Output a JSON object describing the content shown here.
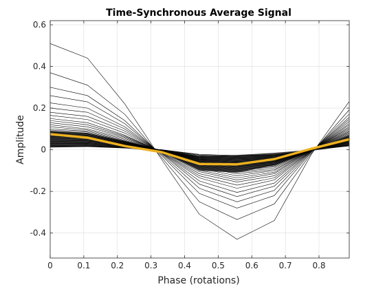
{
  "chart_data": {
    "type": "line",
    "title": "Time-Synchronous Average Signal",
    "xlabel": "Phase (rotations)",
    "ylabel": "Amplitude",
    "xlim": [
      0,
      0.89
    ],
    "ylim": [
      -0.52,
      0.62
    ],
    "xticks": [
      0,
      0.1,
      0.2,
      0.3,
      0.4,
      0.5,
      0.6,
      0.7,
      0.8
    ],
    "xtick_labels": [
      "0",
      "0.1",
      "0.2",
      "0.3",
      "0.4",
      "0.5",
      "0.6",
      "0.7",
      "0.8"
    ],
    "yticks": [
      -0.4,
      -0.2,
      0,
      0.2,
      0.4,
      0.6
    ],
    "ytick_labels": [
      "-0.4",
      "-0.2",
      "0",
      "0.2",
      "0.4",
      "0.6"
    ],
    "grid": true,
    "legend": "none",
    "colors": {
      "individual": "#000000",
      "dense_band": "#404040",
      "average": "#EDB120",
      "grid": "#dcdcdc"
    },
    "x": [
      0,
      0.111,
      0.222,
      0.333,
      0.444,
      0.556,
      0.667,
      0.778,
      0.889
    ],
    "series": [
      {
        "values": [
          0.51,
          0.44,
          0.22,
          -0.05,
          -0.31,
          -0.43,
          -0.34,
          -0.02,
          0.23
        ]
      },
      {
        "values": [
          0.37,
          0.31,
          0.17,
          -0.04,
          -0.25,
          -0.335,
          -0.26,
          -0.015,
          0.19
        ]
      },
      {
        "values": [
          0.3,
          0.26,
          0.14,
          -0.03,
          -0.21,
          -0.28,
          -0.22,
          -0.01,
          0.17
        ]
      },
      {
        "values": [
          0.26,
          0.23,
          0.125,
          -0.025,
          -0.185,
          -0.25,
          -0.195,
          -0.008,
          0.155
        ]
      },
      {
        "values": [
          0.225,
          0.2,
          0.11,
          -0.02,
          -0.165,
          -0.225,
          -0.175,
          -0.006,
          0.145
        ]
      },
      {
        "values": [
          0.2,
          0.18,
          0.1,
          -0.018,
          -0.15,
          -0.205,
          -0.16,
          -0.005,
          0.135
        ]
      },
      {
        "values": [
          0.18,
          0.16,
          0.09,
          -0.016,
          -0.135,
          -0.185,
          -0.145,
          -0.004,
          0.125
        ]
      },
      {
        "values": [
          0.165,
          0.145,
          0.08,
          -0.014,
          -0.125,
          -0.17,
          -0.135,
          -0.003,
          0.118
        ]
      },
      {
        "values": [
          0.15,
          0.13,
          0.07,
          -0.012,
          -0.115,
          -0.155,
          -0.125,
          -0.002,
          0.11
        ]
      },
      {
        "values": [
          0.14,
          0.12,
          0.065,
          -0.01,
          -0.105,
          -0.145,
          -0.115,
          -0.001,
          0.104
        ]
      },
      {
        "values": [
          0.13,
          0.11,
          0.06,
          -0.009,
          -0.098,
          -0.135,
          -0.108,
          0.0,
          0.098
        ]
      },
      {
        "values": [
          0.12,
          0.1,
          0.055,
          -0.008,
          -0.09,
          -0.125,
          -0.1,
          0.0,
          0.092
        ]
      },
      {
        "values": [
          0.11,
          0.095,
          0.05,
          -0.007,
          -0.085,
          -0.115,
          -0.095,
          0.0,
          0.087
        ]
      },
      {
        "values": [
          0.1,
          0.09,
          0.045,
          -0.006,
          -0.08,
          -0.108,
          -0.088,
          0.0,
          0.082
        ]
      },
      {
        "values": [
          0.095,
          0.085,
          0.042,
          -0.005,
          -0.076,
          -0.1,
          -0.082,
          0.0,
          0.077
        ]
      },
      {
        "values": [
          0.09,
          0.08,
          0.04,
          -0.004,
          -0.072,
          -0.095,
          -0.077,
          0.0,
          0.072
        ]
      },
      {
        "values": [
          0.085,
          0.075,
          0.037,
          -0.004,
          -0.068,
          -0.09,
          -0.072,
          0.0,
          0.067
        ]
      },
      {
        "values": [
          0.08,
          0.07,
          0.035,
          -0.003,
          -0.065,
          -0.085,
          -0.068,
          0.0,
          0.062
        ]
      },
      {
        "values": [
          0.075,
          0.066,
          0.033,
          -0.003,
          -0.062,
          -0.08,
          -0.064,
          0.0,
          0.058
        ]
      },
      {
        "values": [
          0.07,
          0.062,
          0.031,
          -0.003,
          -0.058,
          -0.076,
          -0.06,
          0.0,
          0.054
        ]
      },
      {
        "values": [
          0.065,
          0.058,
          0.029,
          -0.002,
          -0.055,
          -0.072,
          -0.057,
          0.0,
          0.05
        ]
      },
      {
        "values": [
          0.06,
          0.054,
          0.027,
          -0.002,
          -0.052,
          -0.068,
          -0.054,
          0.0,
          0.047
        ]
      },
      {
        "values": [
          0.055,
          0.05,
          0.025,
          -0.002,
          -0.049,
          -0.064,
          -0.051,
          0.0,
          0.044
        ]
      },
      {
        "values": [
          0.05,
          0.046,
          0.023,
          -0.002,
          -0.046,
          -0.06,
          -0.048,
          0.0,
          0.041
        ]
      },
      {
        "values": [
          0.045,
          0.042,
          0.021,
          -0.001,
          -0.043,
          -0.056,
          -0.045,
          0.0,
          0.038
        ]
      },
      {
        "values": [
          0.04,
          0.038,
          0.019,
          -0.001,
          -0.04,
          -0.052,
          -0.042,
          0.0,
          0.035
        ]
      },
      {
        "values": [
          0.035,
          0.034,
          0.017,
          -0.001,
          -0.037,
          -0.048,
          -0.039,
          0.0,
          0.032
        ]
      },
      {
        "values": [
          0.03,
          0.03,
          0.015,
          -0.001,
          -0.034,
          -0.044,
          -0.036,
          0.0,
          0.029
        ]
      },
      {
        "values": [
          0.025,
          0.026,
          0.013,
          -0.001,
          -0.031,
          -0.04,
          -0.033,
          0.0,
          0.026
        ]
      },
      {
        "values": [
          0.02,
          0.022,
          0.011,
          0.0,
          -0.028,
          -0.036,
          -0.03,
          0.0,
          0.023
        ]
      },
      {
        "values": [
          0.015,
          0.018,
          0.009,
          0.0,
          -0.025,
          -0.032,
          -0.027,
          0.0,
          0.02
        ]
      },
      {
        "values": [
          0.012,
          0.015,
          0.008,
          0.0,
          -0.022,
          -0.028,
          -0.024,
          0.0,
          0.018
        ]
      }
    ],
    "band": {
      "upper": [
        0.09,
        0.08,
        0.04,
        -0.004,
        -0.03,
        -0.025,
        -0.015,
        0.0,
        0.07
      ],
      "lower": [
        0.012,
        0.015,
        0.008,
        -0.01,
        -0.1,
        -0.11,
        -0.075,
        -0.005,
        0.018
      ]
    },
    "average": {
      "values": [
        0.075,
        0.058,
        0.018,
        -0.012,
        -0.068,
        -0.07,
        -0.045,
        0.005,
        0.05
      ]
    }
  }
}
